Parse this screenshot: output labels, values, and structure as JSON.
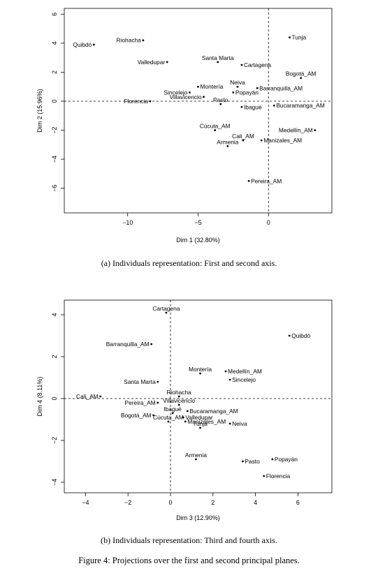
{
  "chart_data": [
    {
      "type": "scatter",
      "title": "",
      "xlabel": "Dim 1 (32.80%)",
      "ylabel": "Dim 2 (15.96%)",
      "xlim": [
        -14.5,
        4.5
      ],
      "ylim": [
        -7.7,
        6.4
      ],
      "xticks": [
        -10,
        -5,
        0
      ],
      "yticks": [
        -6,
        -4,
        -2,
        0,
        2,
        4,
        6
      ],
      "grid": false,
      "reference_lines": {
        "x": 0,
        "y": 0
      },
      "points": [
        {
          "label": "Quibdó",
          "x": -12.4,
          "y": 3.9,
          "anchor": "end"
        },
        {
          "label": "Riohacha",
          "x": -8.9,
          "y": 4.2,
          "anchor": "end"
        },
        {
          "label": "Tunja",
          "x": 1.5,
          "y": 4.4,
          "anchor": "start"
        },
        {
          "label": "Valledupar",
          "x": -7.2,
          "y": 2.7,
          "anchor": "end"
        },
        {
          "label": "Santa Marta",
          "x": -3.6,
          "y": 2.7,
          "anchor": "middle"
        },
        {
          "label": "Cartagena",
          "x": -1.9,
          "y": 2.5,
          "anchor": "start"
        },
        {
          "label": "Bogotá_AM",
          "x": 2.3,
          "y": 1.6,
          "anchor": "middle"
        },
        {
          "label": "Montería",
          "x": -5.0,
          "y": 1.0,
          "anchor": "start"
        },
        {
          "label": "Neiva",
          "x": -2.2,
          "y": 1.0,
          "anchor": "middle"
        },
        {
          "label": "Barranquilla_AM",
          "x": -0.8,
          "y": 0.9,
          "anchor": "start"
        },
        {
          "label": "Sincelejo",
          "x": -5.6,
          "y": 0.6,
          "anchor": "end"
        },
        {
          "label": "Popayán",
          "x": -2.5,
          "y": 0.6,
          "anchor": "start"
        },
        {
          "label": "Villavicencio",
          "x": -4.6,
          "y": 0.3,
          "anchor": "end"
        },
        {
          "label": "Florencia",
          "x": -8.4,
          "y": 0.0,
          "anchor": "end"
        },
        {
          "label": "Pasto",
          "x": -3.4,
          "y": -0.2,
          "anchor": "middle"
        },
        {
          "label": "Ibagué",
          "x": -1.9,
          "y": -0.4,
          "anchor": "start"
        },
        {
          "label": "Bucaramanga_AM",
          "x": 0.4,
          "y": -0.3,
          "anchor": "start"
        },
        {
          "label": "Cúcuta_AM",
          "x": -3.8,
          "y": -2.0,
          "anchor": "middle"
        },
        {
          "label": "Medellín_AM",
          "x": 3.3,
          "y": -2.0,
          "anchor": "end"
        },
        {
          "label": "Cali_AM",
          "x": -1.8,
          "y": -2.7,
          "anchor": "middle"
        },
        {
          "label": "Manizales_AM",
          "x": -0.5,
          "y": -2.7,
          "anchor": "start"
        },
        {
          "label": "Armenia",
          "x": -2.9,
          "y": -3.1,
          "anchor": "middle"
        },
        {
          "label": "Pereira_AM",
          "x": -1.4,
          "y": -5.5,
          "anchor": "start"
        }
      ],
      "caption": "(a) Individuals representation: First and second axis."
    },
    {
      "type": "scatter",
      "title": "",
      "xlabel": "Dim 3 (12.90%)",
      "ylabel": "Dim 4 (8.11%)",
      "xlim": [
        -5,
        7.6
      ],
      "ylim": [
        -4.5,
        4.7
      ],
      "xticks": [
        -4,
        -2,
        0,
        2,
        4,
        6
      ],
      "yticks": [
        -4,
        -2,
        0,
        2,
        4
      ],
      "grid": false,
      "reference_lines": {
        "x": 0,
        "y": 0
      },
      "points": [
        {
          "label": "Cartagena",
          "x": -0.2,
          "y": 4.1,
          "anchor": "middle"
        },
        {
          "label": "Quibdó",
          "x": 5.6,
          "y": 3.0,
          "anchor": "start"
        },
        {
          "label": "Barranquilla_AM",
          "x": -0.9,
          "y": 2.6,
          "anchor": "end"
        },
        {
          "label": "Medellín_AM",
          "x": 2.6,
          "y": 1.3,
          "anchor": "start"
        },
        {
          "label": "Montería",
          "x": 1.4,
          "y": 1.2,
          "anchor": "middle"
        },
        {
          "label": "Sincelejo",
          "x": 2.8,
          "y": 0.9,
          "anchor": "start"
        },
        {
          "label": "Santa Marta",
          "x": -0.6,
          "y": 0.8,
          "anchor": "end"
        },
        {
          "label": "Cali_AM",
          "x": -3.3,
          "y": 0.1,
          "anchor": "end"
        },
        {
          "label": "Riohacha",
          "x": 0.4,
          "y": 0.1,
          "anchor": "middle"
        },
        {
          "label": "Pereira_AM",
          "x": -0.6,
          "y": -0.2,
          "anchor": "end"
        },
        {
          "label": "Villavicencio",
          "x": 0.4,
          "y": -0.3,
          "anchor": "middle"
        },
        {
          "label": "Bucaramanga_AM",
          "x": 0.8,
          "y": -0.6,
          "anchor": "start"
        },
        {
          "label": "Bogotá_AM",
          "x": -0.8,
          "y": -0.8,
          "anchor": "end"
        },
        {
          "label": "Ibagué",
          "x": 0.1,
          "y": -0.7,
          "anchor": "middle"
        },
        {
          "label": "Valledupar",
          "x": 0.6,
          "y": -0.9,
          "anchor": "start"
        },
        {
          "label": "Cúcuta_AM",
          "x": -0.1,
          "y": -1.1,
          "anchor": "middle"
        },
        {
          "label": "Manizales_AM",
          "x": 0.7,
          "y": -1.1,
          "anchor": "start"
        },
        {
          "label": "Neiva",
          "x": 2.8,
          "y": -1.2,
          "anchor": "start"
        },
        {
          "label": "Tunja",
          "x": 1.4,
          "y": -1.4,
          "anchor": "middle"
        },
        {
          "label": "Armenia",
          "x": 1.2,
          "y": -2.9,
          "anchor": "middle"
        },
        {
          "label": "Pasto",
          "x": 3.4,
          "y": -3.0,
          "anchor": "start"
        },
        {
          "label": "Popayán",
          "x": 4.8,
          "y": -2.9,
          "anchor": "start"
        },
        {
          "label": "Florencia",
          "x": 4.4,
          "y": -3.7,
          "anchor": "start"
        }
      ],
      "caption": "(b) Individuals representation: Third and fourth axis."
    }
  ],
  "figure_caption": "Figure 4: Projections over the first and second principal planes."
}
